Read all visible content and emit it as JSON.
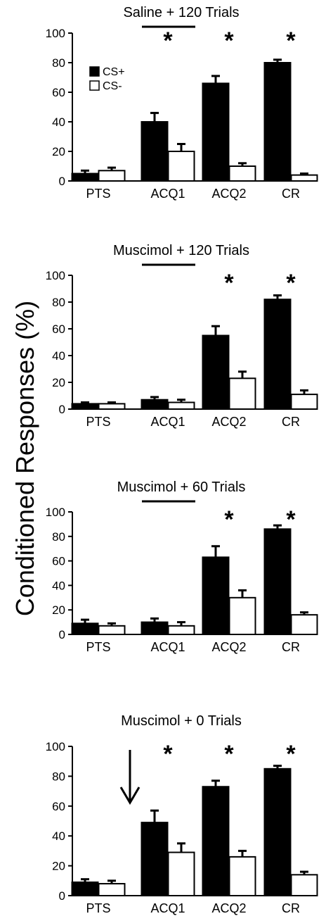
{
  "figure": {
    "ylabel": "Conditioned Responses (%)"
  },
  "legend": {
    "cs_plus": "CS+",
    "cs_minus": "CS-"
  },
  "colors": {
    "cs_plus": "#000000",
    "cs_minus": "#ffffff"
  },
  "chart_data": [
    {
      "type": "bar",
      "title": "Saline + 120 Trials",
      "categories": [
        "PTS",
        "ACQ1",
        "ACQ2",
        "CR"
      ],
      "ylim": [
        0,
        100
      ],
      "yticks": [
        "0",
        "20",
        "40",
        "60",
        "80",
        "100"
      ],
      "series": [
        {
          "name": "CS+",
          "values": [
            5,
            40,
            66,
            80
          ],
          "errors": [
            2,
            6,
            5,
            2
          ]
        },
        {
          "name": "CS-",
          "values": [
            7,
            20,
            10,
            4
          ],
          "errors": [
            2,
            5,
            2,
            1
          ]
        }
      ],
      "significance": [
        "",
        "*",
        "*",
        "*"
      ],
      "has_bracket_line": true,
      "has_arrow": false,
      "legend": "top-left"
    },
    {
      "type": "bar",
      "title": "Muscimol + 120 Trials",
      "categories": [
        "PTS",
        "ACQ1",
        "ACQ2",
        "CR"
      ],
      "ylim": [
        0,
        100
      ],
      "yticks": [
        "0",
        "20",
        "40",
        "60",
        "80",
        "100"
      ],
      "series": [
        {
          "name": "CS+",
          "values": [
            4,
            7,
            55,
            82
          ],
          "errors": [
            1,
            2,
            7,
            3
          ]
        },
        {
          "name": "CS-",
          "values": [
            4,
            5,
            23,
            11
          ],
          "errors": [
            1,
            2,
            5,
            3
          ]
        }
      ],
      "significance": [
        "",
        "",
        "*",
        "*"
      ],
      "has_bracket_line": true,
      "has_arrow": false
    },
    {
      "type": "bar",
      "title": "Muscimol + 60 Trials",
      "categories": [
        "PTS",
        "ACQ1",
        "ACQ2",
        "CR"
      ],
      "ylim": [
        0,
        100
      ],
      "yticks": [
        "0",
        "20",
        "40",
        "60",
        "80",
        "100"
      ],
      "series": [
        {
          "name": "CS+",
          "values": [
            9,
            10,
            63,
            86
          ],
          "errors": [
            3,
            3,
            9,
            3
          ]
        },
        {
          "name": "CS-",
          "values": [
            7,
            7,
            30,
            16
          ],
          "errors": [
            2,
            3,
            6,
            2
          ]
        }
      ],
      "significance": [
        "",
        "",
        "*",
        "*"
      ],
      "has_bracket_line": true,
      "has_arrow": false
    },
    {
      "type": "bar",
      "title": "Muscimol + 0 Trials",
      "categories": [
        "PTS",
        "ACQ1",
        "ACQ2",
        "CR"
      ],
      "ylim": [
        0,
        100
      ],
      "yticks": [
        "0",
        "20",
        "40",
        "60",
        "80",
        "100"
      ],
      "series": [
        {
          "name": "CS+",
          "values": [
            9,
            49,
            73,
            85
          ],
          "errors": [
            2,
            8,
            4,
            2
          ]
        },
        {
          "name": "CS-",
          "values": [
            8,
            29,
            26,
            14
          ],
          "errors": [
            2,
            6,
            4,
            2
          ]
        }
      ],
      "significance": [
        "",
        "*",
        "*",
        "*"
      ],
      "has_bracket_line": false,
      "has_arrow": true
    }
  ]
}
